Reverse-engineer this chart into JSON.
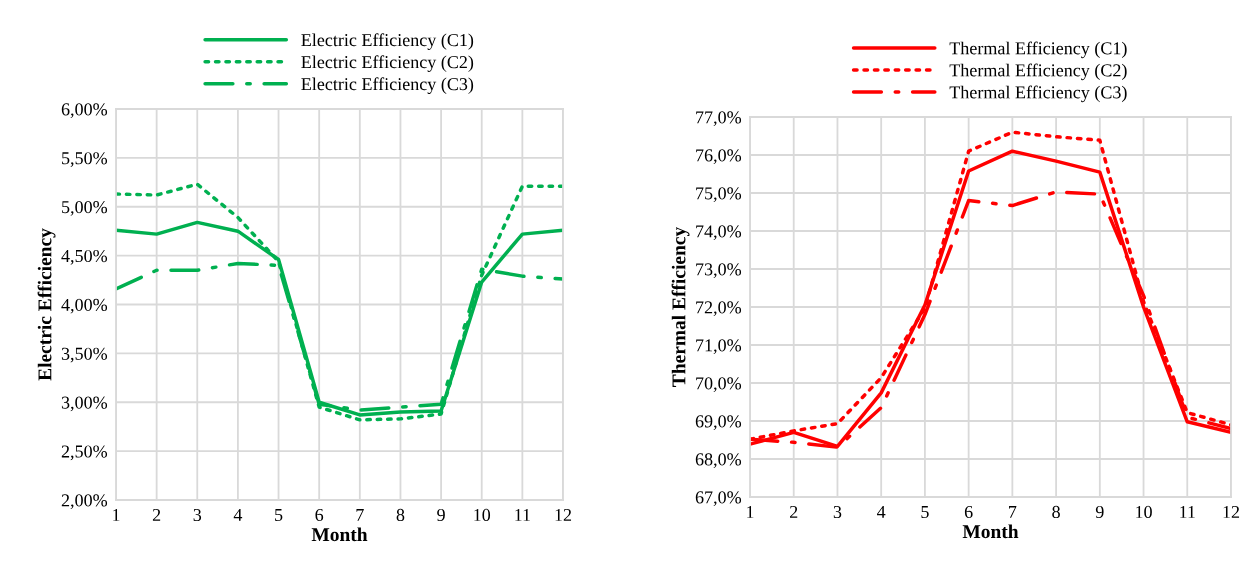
{
  "chart_data": [
    {
      "type": "line",
      "xlabel": "Month",
      "ylabel": "Electric Efficiency",
      "x": [
        1,
        2,
        3,
        4,
        5,
        6,
        7,
        8,
        9,
        10,
        11,
        12
      ],
      "xlim": [
        1,
        12
      ],
      "xticks": [
        1,
        2,
        3,
        4,
        5,
        6,
        7,
        8,
        9,
        10,
        11,
        12
      ],
      "ylim": [
        2.0,
        6.0
      ],
      "yticks": [
        {
          "value": 2.0,
          "label": "2,00%"
        },
        {
          "value": 2.5,
          "label": "2,50%"
        },
        {
          "value": 3.0,
          "label": "3,00%"
        },
        {
          "value": 3.5,
          "label": "3,50%"
        },
        {
          "value": 4.0,
          "label": "4,00%"
        },
        {
          "value": 4.5,
          "label": "4,50%"
        },
        {
          "value": 5.0,
          "label": "5,00%"
        },
        {
          "value": 5.5,
          "label": "5,50%"
        },
        {
          "value": 6.0,
          "label": "6,00%"
        }
      ],
      "grid": true,
      "legend": "top",
      "series": [
        {
          "name": "Electric Efficiency (C1)",
          "color": "#00b050",
          "line_style": "solid",
          "values": [
            4.76,
            4.72,
            4.84,
            4.75,
            4.46,
            3.0,
            2.87,
            2.9,
            2.91,
            4.23,
            4.72,
            4.76
          ]
        },
        {
          "name": "Electric Efficiency (C2)",
          "color": "#00b050",
          "line_style": "dotted",
          "values": [
            5.13,
            5.12,
            5.23,
            4.89,
            4.44,
            2.95,
            2.82,
            2.83,
            2.88,
            4.3,
            5.21,
            5.21
          ]
        },
        {
          "name": "Electric Efficiency (C3)",
          "color": "#00b050",
          "line_style": "dashdot",
          "values": [
            4.16,
            4.35,
            4.35,
            4.42,
            4.4,
            2.98,
            2.92,
            2.95,
            2.98,
            4.36,
            4.29,
            4.26
          ]
        }
      ]
    },
    {
      "type": "line",
      "xlabel": "Month",
      "ylabel": "Thermal Efficiency",
      "x": [
        1,
        2,
        3,
        4,
        5,
        6,
        7,
        8,
        9,
        10,
        11,
        12
      ],
      "xlim": [
        1,
        12
      ],
      "xticks": [
        1,
        2,
        3,
        4,
        5,
        6,
        7,
        8,
        9,
        10,
        11,
        12
      ],
      "ylim": [
        67.0,
        77.0
      ],
      "yticks": [
        {
          "value": 67,
          "label": "67,0%"
        },
        {
          "value": 68,
          "label": "68,0%"
        },
        {
          "value": 69,
          "label": "69,0%"
        },
        {
          "value": 70,
          "label": "70,0%"
        },
        {
          "value": 71,
          "label": "71,0%"
        },
        {
          "value": 72,
          "label": "72,0%"
        },
        {
          "value": 73,
          "label": "73,0%"
        },
        {
          "value": 74,
          "label": "74,0%"
        },
        {
          "value": 75,
          "label": "75,0%"
        },
        {
          "value": 76,
          "label": "76,0%"
        },
        {
          "value": 77,
          "label": "77,0%"
        }
      ],
      "grid": true,
      "legend": "top",
      "series": [
        {
          "name": "Thermal Efficiency (C1)",
          "color": "#ff0000",
          "line_style": "solid",
          "values": [
            68.39,
            68.7,
            68.33,
            69.74,
            72.05,
            75.58,
            76.1,
            75.84,
            75.55,
            72.0,
            68.98,
            68.7
          ]
        },
        {
          "name": "Thermal Efficiency (C2)",
          "color": "#ff0000",
          "line_style": "dotted",
          "values": [
            68.52,
            68.74,
            68.93,
            70.14,
            71.97,
            76.1,
            76.6,
            76.48,
            76.39,
            72.14,
            69.22,
            68.9
          ]
        },
        {
          "name": "Thermal Efficiency (C3)",
          "color": "#ff0000",
          "line_style": "dashdot",
          "values": [
            68.52,
            68.44,
            68.31,
            69.35,
            71.8,
            74.8,
            74.67,
            75.03,
            74.97,
            72.3,
            69.1,
            68.8
          ]
        }
      ]
    }
  ]
}
